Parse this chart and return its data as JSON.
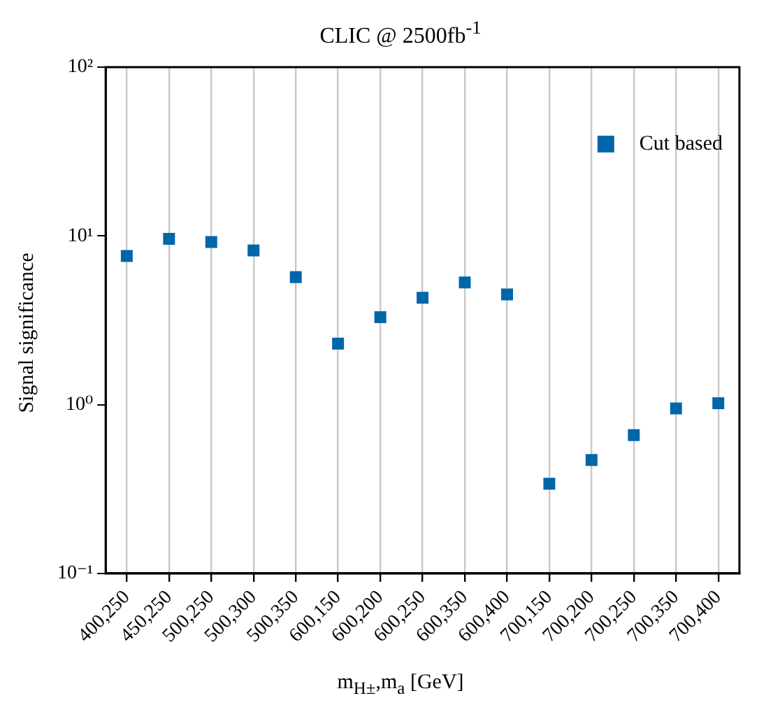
{
  "chart_data": {
    "type": "scatter",
    "title": "CLIC @ 2500fb$^{-1}$",
    "xlabel": "m$_{H±}$,m$_{a}$ [GeV]",
    "ylabel": "Signal significance",
    "categories": [
      "400,250",
      "450,250",
      "500,250",
      "500,300",
      "500,350",
      "600,150",
      "600,200",
      "600,250",
      "600,350",
      "600,400",
      "700,150",
      "700,200",
      "700,250",
      "700,350",
      "700,400"
    ],
    "series": [
      {
        "name": "Cut based",
        "color": "#0066aa",
        "values": [
          7.6,
          9.6,
          9.2,
          8.2,
          5.7,
          2.3,
          3.3,
          4.3,
          5.3,
          4.5,
          0.34,
          0.47,
          0.66,
          0.95,
          1.02
        ]
      }
    ],
    "ylim": [
      0.1,
      100
    ],
    "yticks": [
      {
        "value": 0.1,
        "label": "10⁻¹"
      },
      {
        "value": 1,
        "label": "10⁰"
      },
      {
        "value": 10,
        "label": "10¹"
      },
      {
        "value": 100,
        "label": "10²"
      }
    ],
    "log": "y",
    "grid": "x",
    "legend": "top right",
    "marker": "square"
  }
}
